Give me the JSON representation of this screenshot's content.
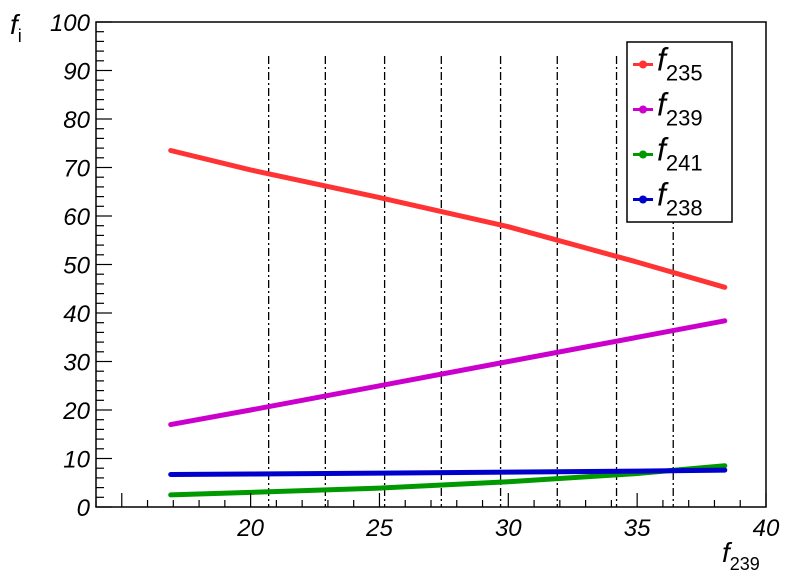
{
  "chart_data": {
    "type": "line",
    "title": "",
    "xlabel": {
      "main": "f",
      "sub": "239"
    },
    "ylabel": {
      "main": "f",
      "sub": "i"
    },
    "xlim": [
      14,
      40
    ],
    "ylim": [
      0,
      100
    ],
    "x_ticks": [
      20,
      25,
      30,
      35,
      40
    ],
    "x_tick_labels": [
      "20",
      "25",
      "30",
      "35",
      "40"
    ],
    "y_ticks": [
      0,
      10,
      20,
      30,
      40,
      50,
      60,
      70,
      80,
      90,
      100
    ],
    "y_tick_labels": [
      "0",
      "10",
      "20",
      "30",
      "40",
      "50",
      "60",
      "70",
      "80",
      "90",
      "100"
    ],
    "grid": false,
    "legend_position": "top-right",
    "vertical_markers": [
      20.7,
      22.9,
      25.2,
      27.4,
      29.7,
      31.9,
      34.2,
      36.4
    ],
    "series": [
      {
        "name": "f",
        "sub": "235",
        "color": "#ff3333",
        "x": [
          16.9,
          20,
          25,
          30,
          35,
          38.4
        ],
        "y": [
          73.5,
          69.5,
          63.8,
          57.8,
          50.5,
          45.3
        ]
      },
      {
        "name": "f",
        "sub": "239",
        "color": "#cc00cc",
        "x": [
          16.9,
          20,
          25,
          30,
          35,
          38.4
        ],
        "y": [
          17.0,
          20.0,
          25.0,
          30.0,
          35.0,
          38.4
        ]
      },
      {
        "name": "f",
        "sub": "241",
        "color": "#009900",
        "x": [
          16.9,
          20,
          25,
          30,
          35,
          38.4
        ],
        "y": [
          2.5,
          3.0,
          3.9,
          5.2,
          6.9,
          8.5
        ]
      },
      {
        "name": "f",
        "sub": "238",
        "color": "#0000cc",
        "x": [
          16.9,
          20,
          25,
          30,
          35,
          38.4
        ],
        "y": [
          6.7,
          6.8,
          7.0,
          7.2,
          7.4,
          7.6
        ]
      }
    ]
  }
}
